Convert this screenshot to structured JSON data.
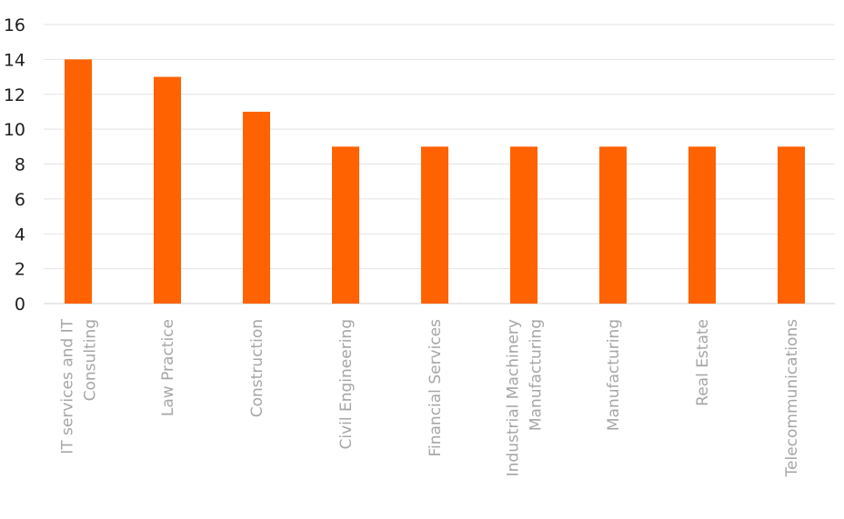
{
  "chart_data": {
    "type": "bar",
    "title": "",
    "xlabel": "",
    "ylabel": "",
    "categories": [
      "IT services and IT Consulting",
      "Law Practice",
      "Construction",
      "Civil Engineering",
      "Financial Services",
      "Industrial Machinery Manufacturing",
      "Manufacturing",
      "Real Estate",
      "Telecommunications"
    ],
    "category_lines": [
      [
        "IT services and IT",
        "Consulting"
      ],
      [
        "Law Practice"
      ],
      [
        "Construction"
      ],
      [
        "Civil Engineering"
      ],
      [
        "Financial Services"
      ],
      [
        "Industrial Machinery",
        "Manufacturing"
      ],
      [
        "Manufacturing"
      ],
      [
        "Real Estate"
      ],
      [
        "Telecommunications"
      ]
    ],
    "values": [
      14,
      13,
      11,
      9,
      9,
      9,
      9,
      9,
      9
    ],
    "ylim": [
      0,
      16
    ],
    "yticks": [
      "0",
      "2",
      "4",
      "6",
      "8",
      "10",
      "12",
      "14",
      "16"
    ],
    "grid": true,
    "legend": "none",
    "bar_color": "#ff6200"
  }
}
